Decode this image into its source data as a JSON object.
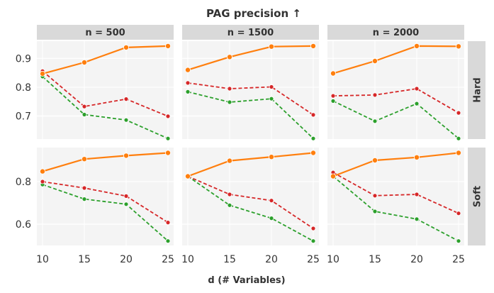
{
  "chart_data": {
    "type": "line",
    "title": "PAG precision ↑",
    "xlabel": "d (# Variables)",
    "ylabel": "",
    "x": [
      10,
      15,
      20,
      25
    ],
    "x_tick_labels": [
      "10",
      "15",
      "20",
      "25"
    ],
    "columns": [
      "n = 500",
      "n = 1500",
      "n = 2000"
    ],
    "rows": [
      "Hard",
      "Soft"
    ],
    "row_settings": {
      "Hard": {
        "ylim": [
          0.62,
          0.96
        ],
        "yticks": [
          0.7,
          0.8,
          0.9
        ],
        "ytick_labels": [
          "0.7",
          "0.8",
          "0.9"
        ]
      },
      "Soft": {
        "ylim": [
          0.5,
          0.96
        ],
        "yticks": [
          0.6,
          0.8
        ],
        "ytick_labels": [
          "0.6",
          "0.8"
        ]
      }
    },
    "series_styles": [
      {
        "name": "orange",
        "color": "#ff7f0e",
        "dash": "solid"
      },
      {
        "name": "red",
        "color": "#d62728",
        "dash": "dashed"
      },
      {
        "name": "green",
        "color": "#2ca02c",
        "dash": "dashed"
      }
    ],
    "panels": [
      {
        "row": "Hard",
        "col": "n = 500",
        "series": [
          {
            "name": "orange",
            "values": [
              0.847,
              0.886,
              0.938,
              0.943
            ]
          },
          {
            "name": "red",
            "values": [
              0.856,
              0.733,
              0.759,
              0.699
            ]
          },
          {
            "name": "green",
            "values": [
              0.837,
              0.705,
              0.686,
              0.622
            ]
          }
        ]
      },
      {
        "row": "Hard",
        "col": "n = 1500",
        "series": [
          {
            "name": "orange",
            "values": [
              0.86,
              0.905,
              0.941,
              0.943
            ]
          },
          {
            "name": "red",
            "values": [
              0.815,
              0.795,
              0.801,
              0.704
            ]
          },
          {
            "name": "green",
            "values": [
              0.784,
              0.748,
              0.76,
              0.622
            ]
          }
        ]
      },
      {
        "row": "Hard",
        "col": "n = 2000",
        "series": [
          {
            "name": "orange",
            "values": [
              0.848,
              0.891,
              0.943,
              0.942
            ]
          },
          {
            "name": "red",
            "values": [
              0.77,
              0.773,
              0.795,
              0.711
            ]
          },
          {
            "name": "green",
            "values": [
              0.752,
              0.682,
              0.743,
              0.622
            ]
          }
        ]
      },
      {
        "row": "Soft",
        "col": "n = 500",
        "series": [
          {
            "name": "orange",
            "values": [
              0.848,
              0.906,
              0.922,
              0.935
            ]
          },
          {
            "name": "red",
            "values": [
              0.8,
              0.77,
              0.732,
              0.608
            ]
          },
          {
            "name": "green",
            "values": [
              0.786,
              0.718,
              0.694,
              0.521
            ]
          }
        ]
      },
      {
        "row": "Soft",
        "col": "n = 1500",
        "series": [
          {
            "name": "orange",
            "values": [
              0.825,
              0.898,
              0.916,
              0.935
            ]
          },
          {
            "name": "red",
            "values": [
              0.825,
              0.74,
              0.711,
              0.58
            ]
          },
          {
            "name": "green",
            "values": [
              0.825,
              0.689,
              0.628,
              0.521
            ]
          }
        ]
      },
      {
        "row": "Soft",
        "col": "n = 2000",
        "series": [
          {
            "name": "orange",
            "values": [
              0.825,
              0.9,
              0.914,
              0.935
            ]
          },
          {
            "name": "red",
            "values": [
              0.843,
              0.734,
              0.74,
              0.651
            ]
          },
          {
            "name": "green",
            "values": [
              0.825,
              0.66,
              0.624,
              0.521
            ]
          }
        ]
      }
    ]
  }
}
